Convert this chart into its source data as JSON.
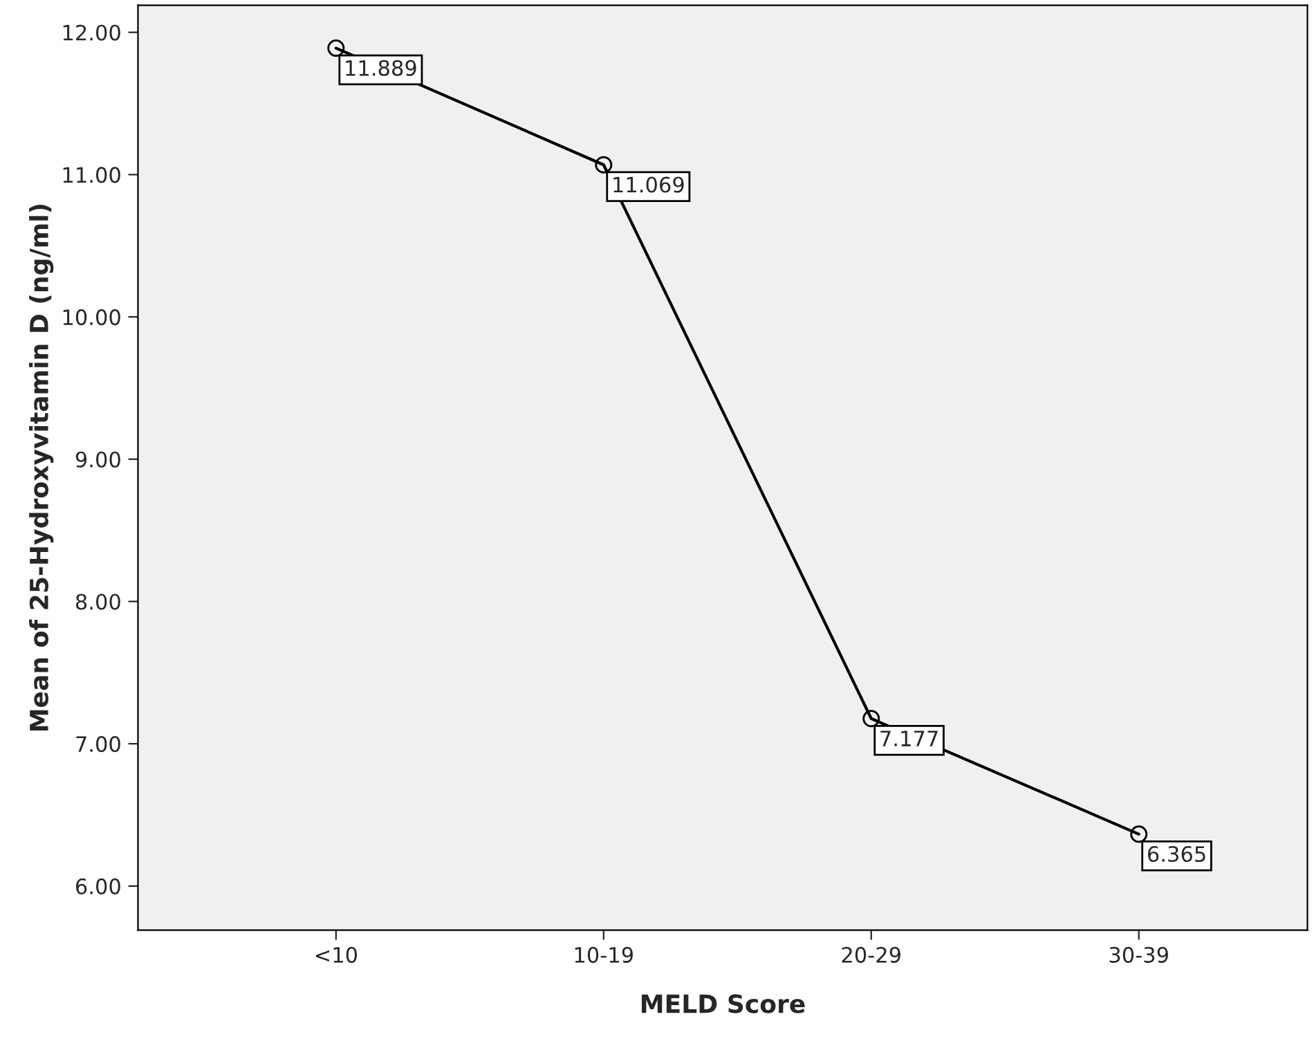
{
  "chart_data": {
    "type": "line",
    "xlabel": "MELD Score",
    "ylabel": "Mean of 25-Hydroxyvitamin D (ng/ml)",
    "categories": [
      "<10",
      "10-19",
      "20-29",
      "30-39"
    ],
    "series": [
      {
        "color": "#000000",
        "values": [
          11.889,
          11.069,
          7.177,
          6.365
        ]
      }
    ],
    "ylim": [
      5.69,
      12.19
    ],
    "yticks": [
      {
        "value": 6,
        "label": "6.00"
      },
      {
        "value": 7,
        "label": "7.00"
      },
      {
        "value": 8,
        "label": "8.00"
      },
      {
        "value": 9,
        "label": "9.00"
      },
      {
        "value": 10,
        "label": "10.00"
      },
      {
        "value": 11,
        "label": "11.00"
      },
      {
        "value": 12,
        "label": "12.00"
      }
    ],
    "marker": "circle",
    "line_style": "solid",
    "data_labels": true,
    "grid": false,
    "legend": false
  }
}
